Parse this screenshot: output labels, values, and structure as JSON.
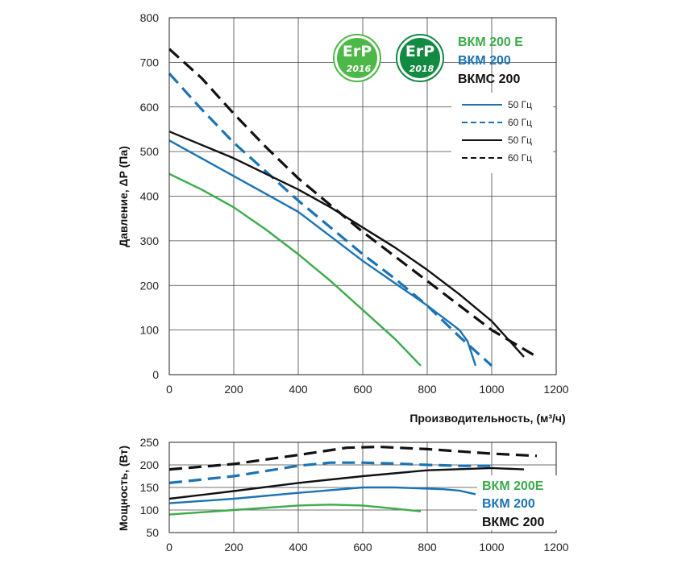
{
  "colors": {
    "green": "#3cab4b",
    "blue": "#1b73b3",
    "black": "#111111",
    "badge_light": "#4db848",
    "badge_dark": "#138a42"
  },
  "badges": [
    {
      "brand": "ErP",
      "year": "2016",
      "color": "#4db848"
    },
    {
      "brand": "ErP",
      "year": "2018",
      "color": "#138a42"
    }
  ],
  "models_top": [
    {
      "label": "ВКМ 200 E",
      "color": "#3cab4b"
    },
    {
      "label": "ВКМ 200",
      "color": "#1b73b3"
    },
    {
      "label": "ВКМС 200",
      "color": "#111111"
    }
  ],
  "legend": [
    {
      "label": "50 Гц",
      "color": "#1b73b3",
      "dash": false
    },
    {
      "label": "60 Гц",
      "color": "#1b73b3",
      "dash": true
    },
    {
      "label": "50 Гц",
      "color": "#111111",
      "dash": false
    },
    {
      "label": "60 Гц",
      "color": "#111111",
      "dash": true
    }
  ],
  "models_bottom": [
    {
      "label": "ВКМ 200E",
      "color": "#3cab4b"
    },
    {
      "label": "ВКМ 200",
      "color": "#1b73b3"
    },
    {
      "label": "ВКМС 200",
      "color": "#111111"
    }
  ],
  "chart_data": [
    {
      "type": "line",
      "xlabel": "Производительность, (м³/ч)",
      "ylabel": "Давление, ΔP (Па)",
      "xlim": [
        0,
        1200
      ],
      "ylim": [
        0,
        800
      ],
      "xticks": [
        0,
        200,
        400,
        600,
        800,
        1000,
        1200
      ],
      "yticks": [
        0,
        100,
        200,
        300,
        400,
        500,
        600,
        700,
        800
      ],
      "grid": true,
      "series": [
        {
          "model": "ВКМ 200 E",
          "freq": "50 Гц",
          "color": "#3cab4b",
          "dash": false,
          "x": [
            0,
            100,
            200,
            300,
            400,
            500,
            600,
            700,
            780
          ],
          "y": [
            450,
            415,
            375,
            325,
            270,
            210,
            145,
            80,
            20
          ]
        },
        {
          "model": "ВКМ 200",
          "freq": "50 Гц",
          "color": "#1b73b3",
          "dash": false,
          "x": [
            0,
            100,
            200,
            300,
            400,
            500,
            600,
            700,
            800,
            900,
            925,
            950
          ],
          "y": [
            525,
            485,
            445,
            405,
            365,
            310,
            255,
            205,
            155,
            100,
            75,
            20
          ]
        },
        {
          "model": "ВКМ 200",
          "freq": "60 Гц",
          "color": "#1b73b3",
          "dash": true,
          "x": [
            0,
            100,
            200,
            300,
            400,
            500,
            600,
            700,
            800,
            900,
            1000
          ],
          "y": [
            675,
            595,
            520,
            455,
            390,
            330,
            270,
            215,
            155,
            85,
            20
          ]
        },
        {
          "model": "ВКМС 200",
          "freq": "50 Гц",
          "color": "#111111",
          "dash": false,
          "x": [
            0,
            100,
            200,
            300,
            400,
            500,
            600,
            700,
            800,
            900,
            1000,
            1100
          ],
          "y": [
            545,
            515,
            485,
            450,
            415,
            375,
            330,
            285,
            235,
            180,
            120,
            40
          ]
        },
        {
          "model": "ВКМС 200",
          "freq": "60 Гц",
          "color": "#111111",
          "dash": true,
          "x": [
            0,
            100,
            200,
            300,
            400,
            500,
            600,
            700,
            800,
            900,
            1000,
            1140
          ],
          "y": [
            730,
            665,
            585,
            510,
            440,
            380,
            320,
            265,
            210,
            155,
            100,
            40
          ]
        }
      ]
    },
    {
      "type": "line",
      "xlabel": "",
      "ylabel": "Мощность, (Вт)",
      "xlim": [
        0,
        1200
      ],
      "ylim": [
        50,
        250
      ],
      "xticks": [
        0,
        200,
        400,
        600,
        800,
        1000,
        1200
      ],
      "yticks": [
        50,
        100,
        150,
        200,
        250
      ],
      "grid": true,
      "series": [
        {
          "model": "ВКМ 200E",
          "freq": "50 Гц",
          "color": "#3cab4b",
          "dash": false,
          "x": [
            0,
            200,
            400,
            500,
            600,
            700,
            780
          ],
          "y": [
            90,
            100,
            110,
            112,
            110,
            103,
            97
          ]
        },
        {
          "model": "ВКМ 200",
          "freq": "50 Гц",
          "color": "#1b73b3",
          "dash": false,
          "x": [
            0,
            200,
            400,
            600,
            700,
            850,
            900,
            950
          ],
          "y": [
            115,
            125,
            138,
            150,
            150,
            146,
            143,
            135
          ]
        },
        {
          "model": "ВКМ 200",
          "freq": "60 Гц",
          "color": "#1b73b3",
          "dash": true,
          "x": [
            0,
            200,
            400,
            500,
            600,
            700,
            800,
            900,
            1000
          ],
          "y": [
            160,
            175,
            198,
            205,
            205,
            203,
            200,
            198,
            198
          ]
        },
        {
          "model": "ВКМС 200",
          "freq": "50 Гц",
          "color": "#111111",
          "dash": false,
          "x": [
            0,
            200,
            400,
            600,
            800,
            1000,
            1100
          ],
          "y": [
            125,
            142,
            160,
            175,
            188,
            193,
            190
          ]
        },
        {
          "model": "ВКМС 200",
          "freq": "60 Гц",
          "color": "#111111",
          "dash": true,
          "x": [
            0,
            200,
            400,
            550,
            650,
            800,
            1000,
            1140
          ],
          "y": [
            190,
            202,
            222,
            238,
            240,
            235,
            225,
            220
          ]
        }
      ]
    }
  ]
}
